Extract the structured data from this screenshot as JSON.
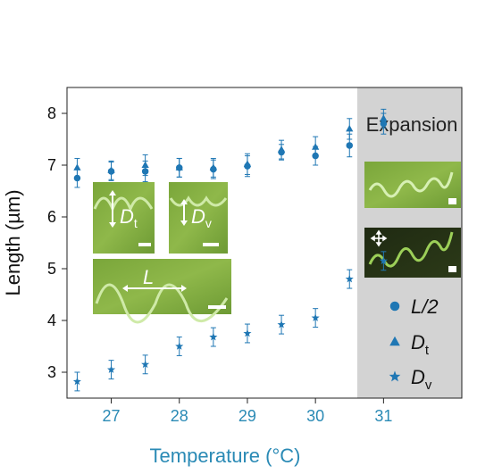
{
  "chart_data": {
    "type": "scatter",
    "xlabel": "Temperature (°C)",
    "ylabel": "Length (µm)",
    "xlim": [
      26.35,
      32.15
    ],
    "ylim": [
      2.5,
      8.5
    ],
    "x_ticks": [
      27,
      28,
      29,
      30,
      31
    ],
    "y_ticks": [
      3,
      4,
      5,
      6,
      7,
      8
    ],
    "grid": false,
    "legend_position": "right",
    "colors": {
      "series": "#1f77b4",
      "axis_label": "#2a8ab5",
      "panel": "#d3d3d3"
    },
    "series": [
      {
        "name": "L/2",
        "marker": "circle",
        "x": [
          26.5,
          27,
          27.5,
          28,
          28.5,
          29,
          29.5,
          30,
          30.5,
          31
        ],
        "y": [
          6.75,
          6.88,
          6.88,
          6.95,
          6.92,
          6.98,
          7.25,
          7.18,
          7.38,
          7.8
        ],
        "err": [
          0.18,
          0.18,
          0.2,
          0.18,
          0.18,
          0.2,
          0.15,
          0.18,
          0.22,
          0.2
        ]
      },
      {
        "name": "D_t",
        "marker": "triangle",
        "x": [
          26.5,
          27,
          27.5,
          28,
          28.5,
          29,
          29.5,
          30,
          30.5,
          31
        ],
        "y": [
          6.95,
          6.9,
          7.0,
          6.95,
          6.95,
          7.02,
          7.3,
          7.35,
          7.7,
          7.9
        ],
        "err": [
          0.18,
          0.18,
          0.2,
          0.18,
          0.18,
          0.2,
          0.18,
          0.2,
          0.2,
          0.18
        ]
      },
      {
        "name": "D_v",
        "marker": "star",
        "x": [
          26.5,
          27,
          27.5,
          28,
          28.5,
          29,
          29.5,
          30,
          30.5,
          31
        ],
        "y": [
          2.82,
          3.05,
          3.15,
          3.5,
          3.68,
          3.75,
          3.92,
          4.05,
          4.8,
          5.15
        ],
        "err": [
          0.18,
          0.18,
          0.18,
          0.18,
          0.18,
          0.18,
          0.18,
          0.18,
          0.18,
          0.18
        ]
      }
    ],
    "legend": [
      {
        "marker": "circle",
        "label_main": "L/2",
        "label_sub": ""
      },
      {
        "marker": "triangle",
        "label_main": "D",
        "label_sub": "t"
      },
      {
        "marker": "star",
        "label_main": "D",
        "label_sub": "v"
      }
    ],
    "annotations": {
      "panel_title": "Expansion",
      "inset_dt_main": "D",
      "inset_dt_sub": "t",
      "inset_dv_main": "D",
      "inset_dv_sub": "v",
      "inset_l": "L"
    }
  }
}
